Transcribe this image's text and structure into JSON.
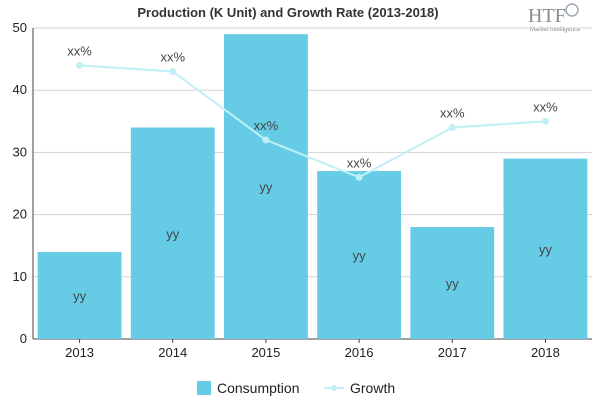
{
  "logo": {
    "text": "HTF",
    "tagline": "Market Intelligence"
  },
  "chart_data": {
    "type": "bar",
    "title": "Production (K Unit) and Growth Rate (2013-2018)",
    "categories": [
      "2013",
      "2014",
      "2015",
      "2016",
      "2017",
      "2018"
    ],
    "ylim": [
      0,
      50
    ],
    "yticks": [
      0,
      10,
      20,
      30,
      40,
      50
    ],
    "grid": true,
    "legend_position": "bottom",
    "series": [
      {
        "name": "Consumption",
        "type": "bar",
        "color": "#66cce6",
        "values": [
          14,
          34,
          49,
          27,
          18,
          29
        ],
        "labels": [
          "yy",
          "yy",
          "yy",
          "yy",
          "yy",
          "yy"
        ]
      },
      {
        "name": "Growth",
        "type": "line",
        "color": "#bff0f5",
        "values": [
          44,
          43,
          32,
          26,
          34,
          35
        ],
        "labels": [
          "xx%",
          "xx%",
          "xx%",
          "xx%",
          "xx%",
          "xx%"
        ]
      }
    ]
  }
}
